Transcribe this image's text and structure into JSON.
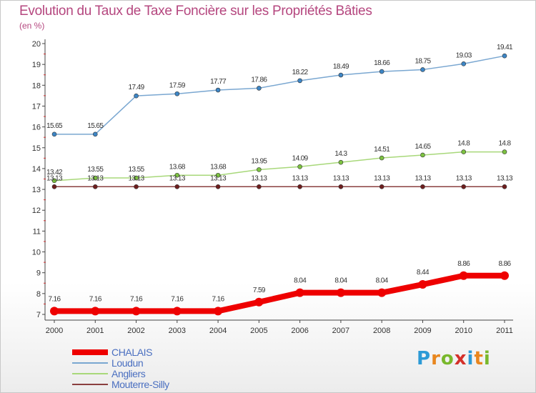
{
  "header": {
    "title": "Evolution du Taux de Taxe Foncière sur les Propriétés Bâties",
    "unit": "(en %)"
  },
  "logo": {
    "letters": [
      "P",
      "r",
      "o",
      "x",
      "i",
      "t",
      "i"
    ],
    "colors": [
      "#2c9ad6",
      "#e8861e",
      "#79b82c",
      "#d4302a",
      "#2c9ad6",
      "#e8861e",
      "#79b82c"
    ]
  },
  "chart_data": {
    "type": "line",
    "x": [
      "2000",
      "2001",
      "2002",
      "2003",
      "2004",
      "2005",
      "2006",
      "2007",
      "2008",
      "2009",
      "2010",
      "2011"
    ],
    "ylim": [
      7,
      20
    ],
    "yticks": [
      "7",
      "8",
      "9",
      "10",
      "11",
      "12",
      "13",
      "14",
      "15",
      "16",
      "17",
      "18",
      "19",
      "20"
    ],
    "grid": false,
    "legend_position": "bottom-left",
    "series": [
      {
        "name": "CHALAIS",
        "color": "#ee0000",
        "marker": "#ee0000",
        "values": [
          7.16,
          7.16,
          7.16,
          7.16,
          7.16,
          7.59,
          8.04,
          8.04,
          8.04,
          8.44,
          8.86,
          8.86
        ],
        "labels": [
          "7.16",
          "7.16",
          "7.16",
          "7.16",
          "7.16",
          "7.59",
          "8.04",
          "8.04",
          "8.04",
          "8.44",
          "8.86",
          "8.86"
        ]
      },
      {
        "name": "Loudun",
        "color": "#7aa7d1",
        "marker": "#3d86c6",
        "values": [
          15.65,
          15.65,
          17.49,
          17.59,
          17.77,
          17.86,
          18.22,
          18.49,
          18.66,
          18.75,
          19.03,
          19.41
        ],
        "labels": [
          "15.65",
          "15.65",
          "17.49",
          "17.59",
          "17.77",
          "17.86",
          "18.22",
          "18.49",
          "18.66",
          "18.75",
          "19.03",
          "19.41"
        ]
      },
      {
        "name": "Angliers",
        "color": "#a8d87a",
        "marker": "#7cc240",
        "values": [
          13.42,
          13.55,
          13.55,
          13.68,
          13.68,
          13.95,
          14.09,
          14.3,
          14.51,
          14.65,
          14.8,
          14.8
        ],
        "labels": [
          "13.42",
          "13.55",
          "13.55",
          "13.68",
          "13.68",
          "13.95",
          "14.09",
          "14.3",
          "14.51",
          "14.65",
          "14.8",
          "14.8"
        ]
      },
      {
        "name": "Mouterre-Silly",
        "color": "#8a3f3f",
        "marker": "#6e1e1e",
        "values": [
          13.13,
          13.13,
          13.13,
          13.13,
          13.13,
          13.13,
          13.13,
          13.13,
          13.13,
          13.13,
          13.13,
          13.13
        ],
        "labels": [
          "13.13",
          "13.13",
          "13.13",
          "13.13",
          "13.13",
          "13.13",
          "13.13",
          "13.13",
          "13.13",
          "13.13",
          "13.13",
          "13.13"
        ]
      }
    ]
  }
}
